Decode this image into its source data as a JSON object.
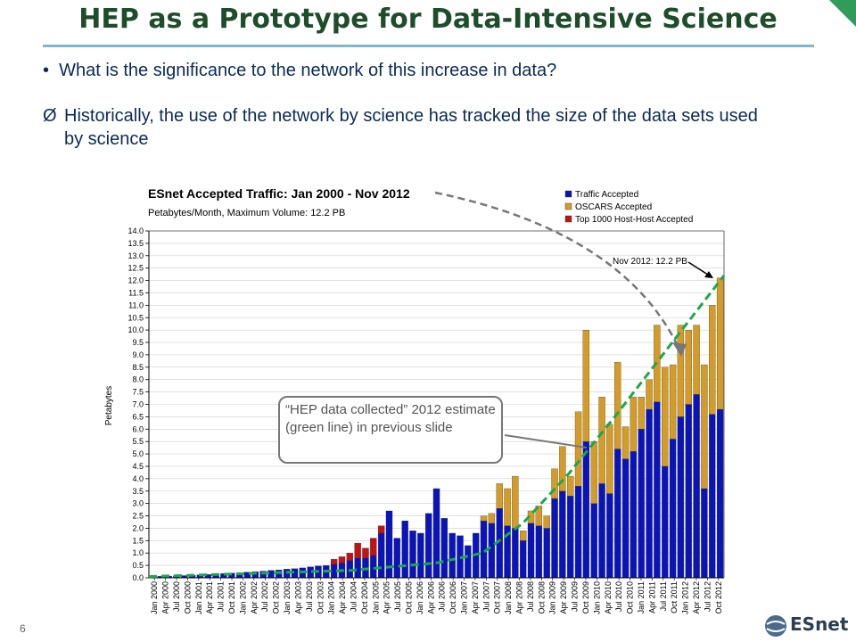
{
  "slide": {
    "title": "HEP as a Prototype for Data-Intensive Science",
    "bullet1": "What is the significance to the network of this increase in data?",
    "bullet1_marker": "•",
    "bullet2": "Historically, the use of the network by science has tracked the size of the data sets used by science",
    "bullet2_marker": "Ø",
    "page_number": "6",
    "logo_text": "ESnet",
    "callout": "“HEP data collected” 2012 estimate (green line) in previous slide"
  },
  "colors": {
    "title": "#1e4d2b",
    "bullets": "#0b2a57",
    "traffic_accepted": "#0a14b8",
    "oscars_accepted": "#d49c26",
    "host_accepted": "#c21212",
    "estimate_line": "#1aa84a"
  },
  "chart_data": {
    "type": "bar",
    "stacked": true,
    "title": "ESnet Accepted Traffic: Jan 2000 - Nov 2012",
    "subtitle": "Petabytes/Month, Maximum Volume: 12.2 PB",
    "ylabel": "Petabytes",
    "ylim": [
      0,
      14
    ],
    "yticks": [
      "0.0",
      "0.5",
      "1.0",
      "1.5",
      "2.0",
      "2.5",
      "3.0",
      "3.5",
      "4.0",
      "4.5",
      "5.0",
      "5.5",
      "6.0",
      "6.5",
      "7.0",
      "7.5",
      "8.0",
      "8.5",
      "9.0",
      "9.5",
      "10.0",
      "10.5",
      "11.0",
      "11.5",
      "12.0",
      "12.5",
      "13.0",
      "13.5",
      "14.0"
    ],
    "xticks": [
      "Jan 2000",
      "Apr 2000",
      "Jul 2000",
      "Oct 2000",
      "Jan 2001",
      "Apr 2001",
      "Jul 2001",
      "Oct 2001",
      "Jan 2002",
      "Apr 2002",
      "Jul 2002",
      "Oct 2002",
      "Jan 2003",
      "Apr 2003",
      "Jul 2003",
      "Oct 2003",
      "Jan 2004",
      "Apr 2004",
      "Jul 2004",
      "Oct 2004",
      "Jan 2005",
      "Apr 2005",
      "Jul 2005",
      "Oct 2005",
      "Jan 2006",
      "Apr 2006",
      "Jul 2006",
      "Oct 2006",
      "Jan 2007",
      "Apr 2007",
      "Jul 2007",
      "Oct 2007",
      "Jan 2008",
      "Apr 2008",
      "Jul 2008",
      "Oct 2008",
      "Jan 2009",
      "Apr 2009",
      "Jul 2009",
      "Oct 2009",
      "Jan 2010",
      "Apr 2010",
      "Jul 2010",
      "Oct 2010",
      "Jan 2011",
      "Apr 2011",
      "Jul 2011",
      "Oct 2011",
      "Jan 2012",
      "Apr 2012",
      "Jul 2012",
      "Oct 2012"
    ],
    "legend": [
      "Traffic Accepted",
      "OSCARS Accepted",
      "Top 1000 Host-Host Accepted"
    ],
    "legend_position": "top-right",
    "annotation": "Nov 2012: 12.2 PB",
    "series": [
      {
        "name": "Traffic Accepted",
        "values": [
          0.05,
          0.06,
          0.07,
          0.08,
          0.09,
          0.1,
          0.12,
          0.13,
          0.15,
          0.17,
          0.19,
          0.21,
          0.23,
          0.25,
          0.27,
          0.3,
          0.32,
          0.35,
          0.37,
          0.4,
          0.44,
          0.48,
          0.5,
          0.55,
          0.6,
          0.7,
          0.8,
          0.8,
          0.9,
          1.8,
          2.7,
          1.6,
          2.3,
          1.9,
          1.8,
          2.6,
          3.6,
          2.4,
          1.8,
          1.7,
          1.3,
          1.8,
          2.3,
          2.2,
          2.8,
          2.1,
          2.0,
          1.5,
          2.2,
          2.1,
          2.0,
          3.2,
          3.5,
          3.3,
          3.7,
          5.5,
          3.0,
          3.8,
          3.4,
          5.2,
          4.8,
          5.1,
          6.0,
          6.8,
          7.1,
          4.5,
          5.6,
          6.5,
          7.0,
          7.4,
          3.6,
          6.6,
          6.8
        ]
      },
      {
        "name": "OSCARS Accepted",
        "values": [
          0,
          0,
          0,
          0,
          0,
          0,
          0,
          0,
          0,
          0,
          0,
          0,
          0,
          0,
          0,
          0,
          0,
          0,
          0,
          0,
          0,
          0,
          0,
          0,
          0,
          0,
          0,
          0,
          0,
          0,
          0,
          0,
          0,
          0,
          0,
          0,
          0,
          0,
          0,
          0,
          0,
          0,
          0.2,
          0.4,
          1.0,
          1.5,
          2.1,
          0.4,
          0.5,
          0.8,
          0.5,
          1.2,
          1.8,
          0.8,
          3.0,
          4.5,
          2.5,
          3.5,
          2.8,
          3.5,
          1.3,
          2.2,
          1.3,
          1.2,
          3.1,
          4.0,
          3.0,
          3.7,
          3.0,
          2.8,
          5.0,
          4.4,
          5.3
        ]
      },
      {
        "name": "Top 1000 Host-Host Accepted",
        "values": [
          0,
          0,
          0,
          0,
          0,
          0,
          0,
          0,
          0,
          0,
          0,
          0,
          0,
          0,
          0,
          0,
          0,
          0,
          0,
          0,
          0,
          0,
          0,
          0.2,
          0.25,
          0.3,
          0.6,
          0.4,
          0.7,
          0.3,
          0,
          0,
          0,
          0,
          0,
          0,
          0,
          0,
          0,
          0,
          0,
          0,
          0,
          0,
          0,
          0,
          0,
          0,
          0,
          0,
          0,
          0,
          0,
          0,
          0,
          0,
          0,
          0,
          0,
          0,
          0,
          0,
          0,
          0,
          0,
          0,
          0,
          0,
          0,
          0,
          0,
          0,
          0
        ]
      }
    ],
    "estimate_line": {
      "name": "HEP data collected estimate",
      "x_fraction": [
        0,
        0.35,
        0.5,
        0.58,
        0.65,
        0.73,
        0.81,
        0.88,
        0.94,
        1.0
      ],
      "values": [
        0.05,
        0.3,
        0.6,
        1.0,
        2.2,
        4.2,
        6.5,
        8.6,
        10.4,
        12.2
      ]
    }
  }
}
